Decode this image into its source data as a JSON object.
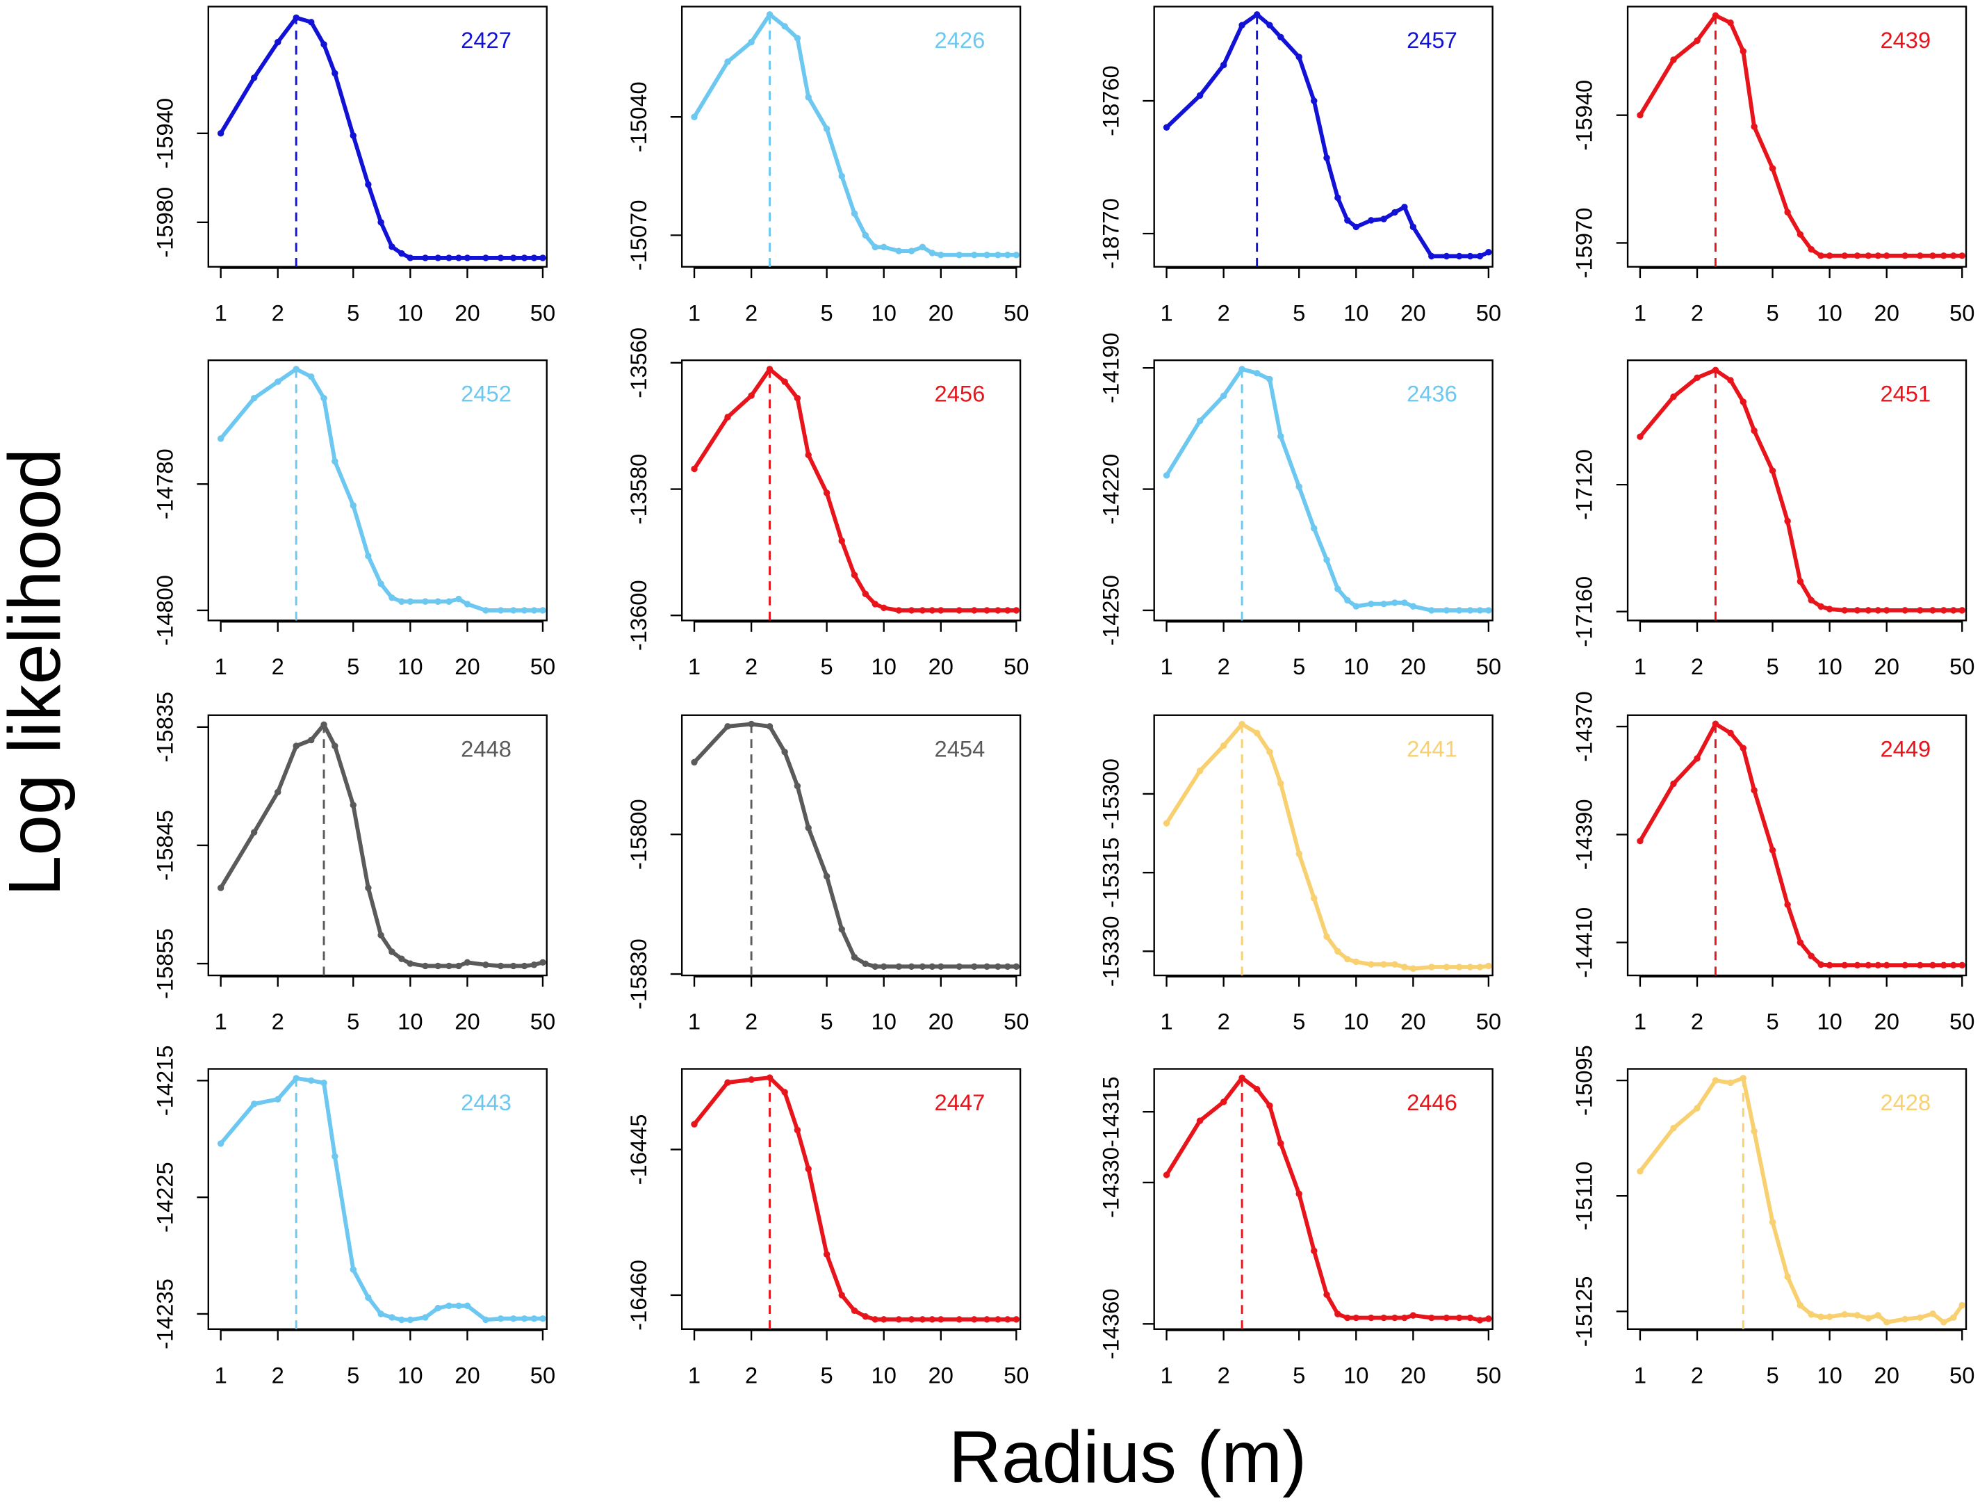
{
  "chart_data": {
    "type": "line",
    "log_x": true,
    "ylabel": "Log likelihood",
    "xlabel": "Radius (m)",
    "x": [
      1,
      1.5,
      2,
      2.5,
      3,
      3.5,
      4,
      5,
      6,
      7,
      8,
      9,
      10,
      12,
      14,
      16,
      18,
      20,
      25,
      30,
      35,
      40,
      45,
      50
    ],
    "xlim": [
      0.86,
      52.5
    ],
    "xticks": [
      1,
      2,
      5,
      10,
      20,
      50
    ],
    "panels": [
      {
        "label": "2427",
        "color": "#1212d6",
        "ylim": [
          -16000,
          -15883
        ],
        "yticks": [
          -15940,
          -15980
        ],
        "values": [
          -15940,
          -15915,
          -15899,
          -15888,
          -15890,
          -15900,
          -15913,
          -15941,
          -15963,
          -15980,
          -15991,
          -15994,
          -15996,
          -15996,
          -15996,
          -15996,
          -15996,
          -15996,
          -15996,
          -15996,
          -15996,
          -15996,
          -15996,
          -15996
        ]
      },
      {
        "label": "2426",
        "color": "#6cc8f0",
        "ylim": [
          -15078,
          -15012
        ],
        "yticks": [
          -15040,
          -15070
        ],
        "values": [
          -15040,
          -15026,
          -15021,
          -15014,
          -15017,
          -15020,
          -15035,
          -15043,
          -15055,
          -15064.5,
          -15070,
          -15073,
          -15073,
          -15074,
          -15074,
          -15073,
          -15074.5,
          -15075,
          -15075,
          -15075,
          -15075,
          -15075,
          -15075,
          -15075
        ]
      },
      {
        "label": "2457",
        "color": "#1212d6",
        "ylim": [
          -18772.5,
          -18752.9
        ],
        "yticks": [
          -18760,
          -18770
        ],
        "values": [
          -18762,
          -18759.6,
          -18757.3,
          -18754.3,
          -18753.5,
          -18754.3,
          -18755.2,
          -18756.7,
          -18760,
          -18764.3,
          -18767.3,
          -18769,
          -18769.5,
          -18769,
          -18768.9,
          -18768.4,
          -18768,
          -18769.5,
          -18771.7,
          -18771.7,
          -18771.7,
          -18771.7,
          -18771.7,
          -18771.4
        ]
      },
      {
        "label": "2439",
        "color": "#e8141b",
        "ylim": [
          -15975.6,
          -15914.5
        ],
        "yticks": [
          -15940,
          -15970
        ],
        "values": [
          -15940,
          -15927,
          -15922.5,
          -15916.6,
          -15918.3,
          -15925,
          -15942.7,
          -15952.5,
          -15962.8,
          -15968,
          -15971.5,
          -15973,
          -15973,
          -15973,
          -15973,
          -15973,
          -15973,
          -15973,
          -15973,
          -15973,
          -15973,
          -15973,
          -15973,
          -15973
        ]
      },
      {
        "label": "2452",
        "color": "#6cc8f0",
        "ylim": [
          -14801.6,
          -14760.4
        ],
        "yticks": [
          -14780,
          -14800
        ],
        "values": [
          -14772.8,
          -14766.4,
          -14763.8,
          -14761.8,
          -14763,
          -14766.4,
          -14776.4,
          -14783.4,
          -14791.4,
          -14795.8,
          -14798,
          -14798.6,
          -14798.6,
          -14798.6,
          -14798.6,
          -14798.6,
          -14798.2,
          -14799,
          -14800,
          -14800,
          -14800,
          -14800,
          -14800,
          -14800
        ]
      },
      {
        "label": "2456",
        "color": "#e8141b",
        "ylim": [
          -13600.8,
          -13559.6
        ],
        "yticks": [
          -13560,
          -13580,
          -13600
        ],
        "values": [
          -13576.8,
          -13568.6,
          -13565.2,
          -13561,
          -13563,
          -13565.6,
          -13574.6,
          -13580.6,
          -13588.2,
          -13593.6,
          -13596.6,
          -13598.2,
          -13598.8,
          -13599.2,
          -13599.2,
          -13599.2,
          -13599.2,
          -13599.2,
          -13599.2,
          -13599.2,
          -13599.2,
          -13599.2,
          -13599.2,
          -13599.2
        ]
      },
      {
        "label": "2436",
        "color": "#6cc8f0",
        "ylim": [
          -14252.5,
          -14188.1
        ],
        "yticks": [
          -14190,
          -14220,
          -14250
        ],
        "values": [
          -14216.6,
          -14203.1,
          -14196.9,
          -14190.3,
          -14191.3,
          -14192.8,
          -14206.9,
          -14219.4,
          -14229.7,
          -14237.5,
          -14244.7,
          -14247.5,
          -14249,
          -14248.4,
          -14248.4,
          -14248.1,
          -14248.1,
          -14249,
          -14250,
          -14250,
          -14250,
          -14250,
          -14250,
          -14250
        ]
      },
      {
        "label": "2451",
        "color": "#e8141b",
        "ylim": [
          -17162.8,
          -17080.8
        ],
        "yticks": [
          -17120,
          -17160
        ],
        "values": [
          -17104.9,
          -17092.3,
          -17086.3,
          -17083.9,
          -17087.1,
          -17093.9,
          -17103,
          -17115.6,
          -17131.5,
          -17150.5,
          -17156.4,
          -17158.4,
          -17159.2,
          -17159.6,
          -17159.6,
          -17159.6,
          -17159.6,
          -17159.6,
          -17159.6,
          -17159.6,
          -17159.6,
          -17159.6,
          -17159.6,
          -17159.6
        ]
      },
      {
        "label": "2448",
        "color": "#5a5a5a",
        "ylim": [
          -15856,
          -15834
        ],
        "yticks": [
          -15835,
          -15845,
          -15855
        ],
        "values": [
          -15848.6,
          -15843.9,
          -15840.5,
          -15836.6,
          -15836.1,
          -15834.8,
          -15836.6,
          -15841.6,
          -15848.6,
          -15852.6,
          -15854,
          -15854.6,
          -15855,
          -15855.2,
          -15855.2,
          -15855.2,
          -15855.2,
          -15854.9,
          -15855.1,
          -15855.2,
          -15855.2,
          -15855.2,
          -15855.1,
          -15854.9
        ]
      },
      {
        "label": "2454",
        "color": "#5a5a5a",
        "ylim": [
          -15830.3,
          -15774.4
        ],
        "yticks": [
          -15800,
          -15830
        ],
        "values": [
          -15784.5,
          -15776.8,
          -15776.3,
          -15776.8,
          -15782.3,
          -15789.6,
          -15798.6,
          -15809,
          -15820.4,
          -15826.4,
          -15827.8,
          -15828.4,
          -15828.4,
          -15828.4,
          -15828.4,
          -15828.4,
          -15828.4,
          -15828.4,
          -15828.4,
          -15828.4,
          -15828.4,
          -15828.4,
          -15828.4,
          -15828.4
        ]
      },
      {
        "label": "2441",
        "color": "#f8d070",
        "ylim": [
          -15334.6,
          -15285
        ],
        "yticks": [
          -15300,
          -15315,
          -15330
        ],
        "values": [
          -15305.6,
          -15295.6,
          -15290.8,
          -15286.7,
          -15288.4,
          -15292,
          -15298,
          -15311.4,
          -15319.9,
          -15327.2,
          -15330,
          -15331.5,
          -15332,
          -15332.5,
          -15332.5,
          -15332.5,
          -15333,
          -15333.3,
          -15333,
          -15333,
          -15333,
          -15333,
          -15333,
          -15332.8
        ]
      },
      {
        "label": "2449",
        "color": "#e8141b",
        "ylim": [
          -14416.1,
          -14367.9
        ],
        "yticks": [
          -14370,
          -14390,
          -14410
        ],
        "values": [
          -14391.2,
          -14380.6,
          -14375.9,
          -14369.5,
          -14371.2,
          -14374,
          -14381.8,
          -14392.9,
          -14403,
          -14410,
          -14412.5,
          -14414.1,
          -14414.2,
          -14414.2,
          -14414.2,
          -14414.2,
          -14414.2,
          -14414.2,
          -14414.2,
          -14414.2,
          -14414.2,
          -14414.2,
          -14414.2,
          -14414.2
        ]
      },
      {
        "label": "2443",
        "color": "#6cc8f0",
        "ylim": [
          -14236.3,
          -14214
        ],
        "yticks": [
          -14215,
          -14225,
          -14235
        ],
        "values": [
          -14220.4,
          -14217,
          -14216.6,
          -14214.8,
          -14215,
          -14215.2,
          -14221.5,
          -14231.2,
          -14233.6,
          -14235,
          -14235.3,
          -14235.5,
          -14235.5,
          -14235.3,
          -14234.5,
          -14234.3,
          -14234.3,
          -14234.3,
          -14235.5,
          -14235.4,
          -14235.4,
          -14235.4,
          -14235.4,
          -14235.4
        ]
      },
      {
        "label": "2447",
        "color": "#e8141b",
        "ylim": [
          -16463.5,
          -16436.7
        ],
        "yticks": [
          -16445,
          -16460
        ],
        "values": [
          -16442.4,
          -16438.1,
          -16437.8,
          -16437.6,
          -16439.1,
          -16443,
          -16447,
          -16455.8,
          -16460,
          -16461.6,
          -16462.2,
          -16462.5,
          -16462.5,
          -16462.5,
          -16462.5,
          -16462.5,
          -16462.5,
          -16462.5,
          -16462.5,
          -16462.5,
          -16462.5,
          -16462.5,
          -16462.5,
          -16462.5
        ]
      },
      {
        "label": "2446",
        "color": "#e8141b",
        "ylim": [
          -14361.1,
          -14305.9
        ],
        "yticks": [
          -14315,
          -14330,
          -14360
        ],
        "values": [
          -14328.4,
          -14316.9,
          -14312.9,
          -14307.8,
          -14310.2,
          -14313.7,
          -14321.7,
          -14332.4,
          -14344.5,
          -14353.8,
          -14357.9,
          -14358.7,
          -14358.7,
          -14358.7,
          -14358.7,
          -14358.7,
          -14358.7,
          -14358.2,
          -14358.7,
          -14358.7,
          -14358.7,
          -14358.7,
          -14359.2,
          -14358.9
        ]
      },
      {
        "label": "2428",
        "color": "#f8d070",
        "ylim": [
          -15127.3,
          -15093.5
        ],
        "yticks": [
          -15095,
          -15110,
          -15125
        ],
        "values": [
          -15106.8,
          -15101.2,
          -15098.6,
          -15095,
          -15095.3,
          -15094.7,
          -15101.6,
          -15113.4,
          -15120.5,
          -15124.2,
          -15125.4,
          -15125.7,
          -15125.7,
          -15125.4,
          -15125.5,
          -15125.9,
          -15125.5,
          -15126.4,
          -15126,
          -15125.8,
          -15125.3,
          -15126.4,
          -15125.8,
          -15124.2
        ]
      }
    ]
  }
}
